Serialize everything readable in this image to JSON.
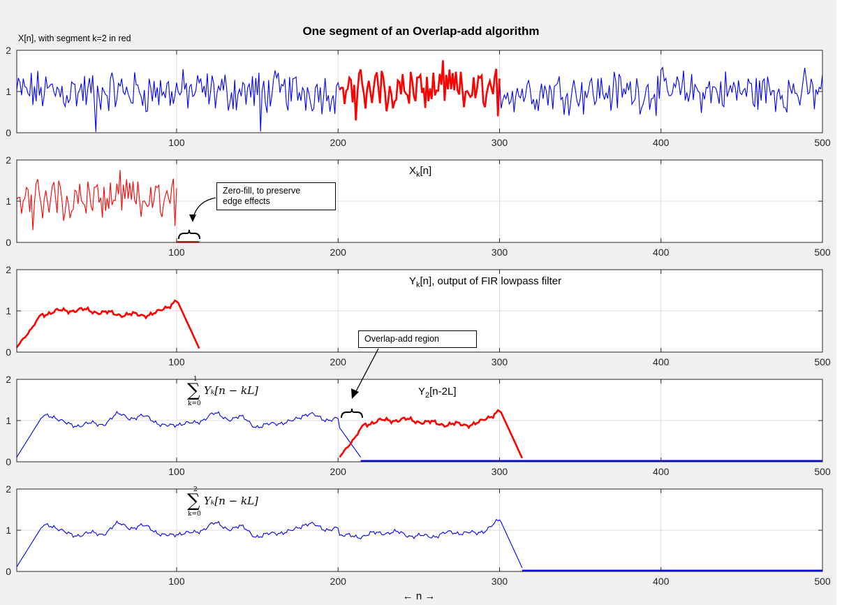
{
  "figure": {
    "title": "One segment of an Overlap-add algorithm",
    "subtitle": "X[n], with segment k=2 in red",
    "xlabel": "←  n  →"
  },
  "colors": {
    "red": "#ff0000",
    "blue": "#0000ff",
    "grid": "#dcdcdc"
  },
  "chart_data": [
    {
      "type": "line",
      "id": "x",
      "title": "X[n], with segment k=2 in red",
      "xlim": [
        1,
        500
      ],
      "ylim": [
        0,
        2
      ],
      "xticks": [
        100,
        200,
        300,
        400,
        500
      ],
      "yticks": [
        0,
        1,
        2
      ],
      "series": [
        {
          "name": "X[n]",
          "color": "blue",
          "kind": "noise",
          "range": [
            1,
            500
          ]
        },
        {
          "name": "segment k=2",
          "color": "red",
          "kind": "noise",
          "range": [
            201,
            300
          ],
          "bold": true
        }
      ]
    },
    {
      "type": "line",
      "id": "xk",
      "label_main": "X",
      "label_sub": "k",
      "label_rest": "[n]",
      "xlim": [
        1,
        500
      ],
      "ylim": [
        0,
        2
      ],
      "xticks": [
        100,
        200,
        300,
        400,
        500
      ],
      "yticks": [
        0,
        1,
        2
      ],
      "series": [
        {
          "name": "X_k[n]",
          "color": "red",
          "kind": "noise",
          "range": [
            1,
            100
          ]
        },
        {
          "name": "zero-fill",
          "color": "red",
          "kind": "zero",
          "range": [
            100,
            114
          ],
          "bold": true
        }
      ],
      "annotation": {
        "text1": "Zero-fill, to preserve",
        "text2": "edge effects"
      }
    },
    {
      "type": "line",
      "id": "yk",
      "label_main": "Y",
      "label_sub": "k",
      "label_rest": "[n], output of FIR lowpass filter",
      "xlim": [
        1,
        500
      ],
      "ylim": [
        0,
        2
      ],
      "xticks": [
        100,
        200,
        300,
        400,
        500
      ],
      "yticks": [
        0,
        1,
        2
      ],
      "series": [
        {
          "name": "Y_k[n]",
          "color": "red",
          "kind": "filtered",
          "range": [
            1,
            114
          ],
          "bold": true
        }
      ]
    },
    {
      "type": "line",
      "id": "y2",
      "label_main": "Y",
      "label_sub": "2",
      "label_rest": "[n-2L]",
      "xlim": [
        1,
        500
      ],
      "ylim": [
        0,
        2
      ],
      "xticks": [
        100,
        200,
        300,
        400,
        500
      ],
      "yticks": [
        0,
        1,
        2
      ],
      "series": [
        {
          "name": "sum k=0..1",
          "color": "blue",
          "kind": "filtered-long",
          "range": [
            1,
            214
          ],
          "zero_after": true
        },
        {
          "name": "Y_2[n-2L]",
          "color": "red",
          "kind": "filtered-shift",
          "range": [
            201,
            314
          ],
          "bold": true
        }
      ],
      "annotation": {
        "text1": "Overlap-add region"
      },
      "sum": {
        "top": "1",
        "bottom": "k=0",
        "expr": "Yₖ[n − kL]"
      }
    },
    {
      "type": "line",
      "id": "sum",
      "xlim": [
        1,
        500
      ],
      "ylim": [
        0,
        2
      ],
      "xticks": [
        100,
        200,
        300,
        400,
        500
      ],
      "yticks": [
        0,
        1,
        2
      ],
      "series": [
        {
          "name": "sum k=0..2",
          "color": "blue",
          "kind": "filtered-long",
          "range": [
            1,
            314
          ],
          "zero_after": true
        }
      ],
      "sum": {
        "top": "2",
        "bottom": "k=0",
        "expr": "Yₖ[n − kL]"
      }
    }
  ]
}
